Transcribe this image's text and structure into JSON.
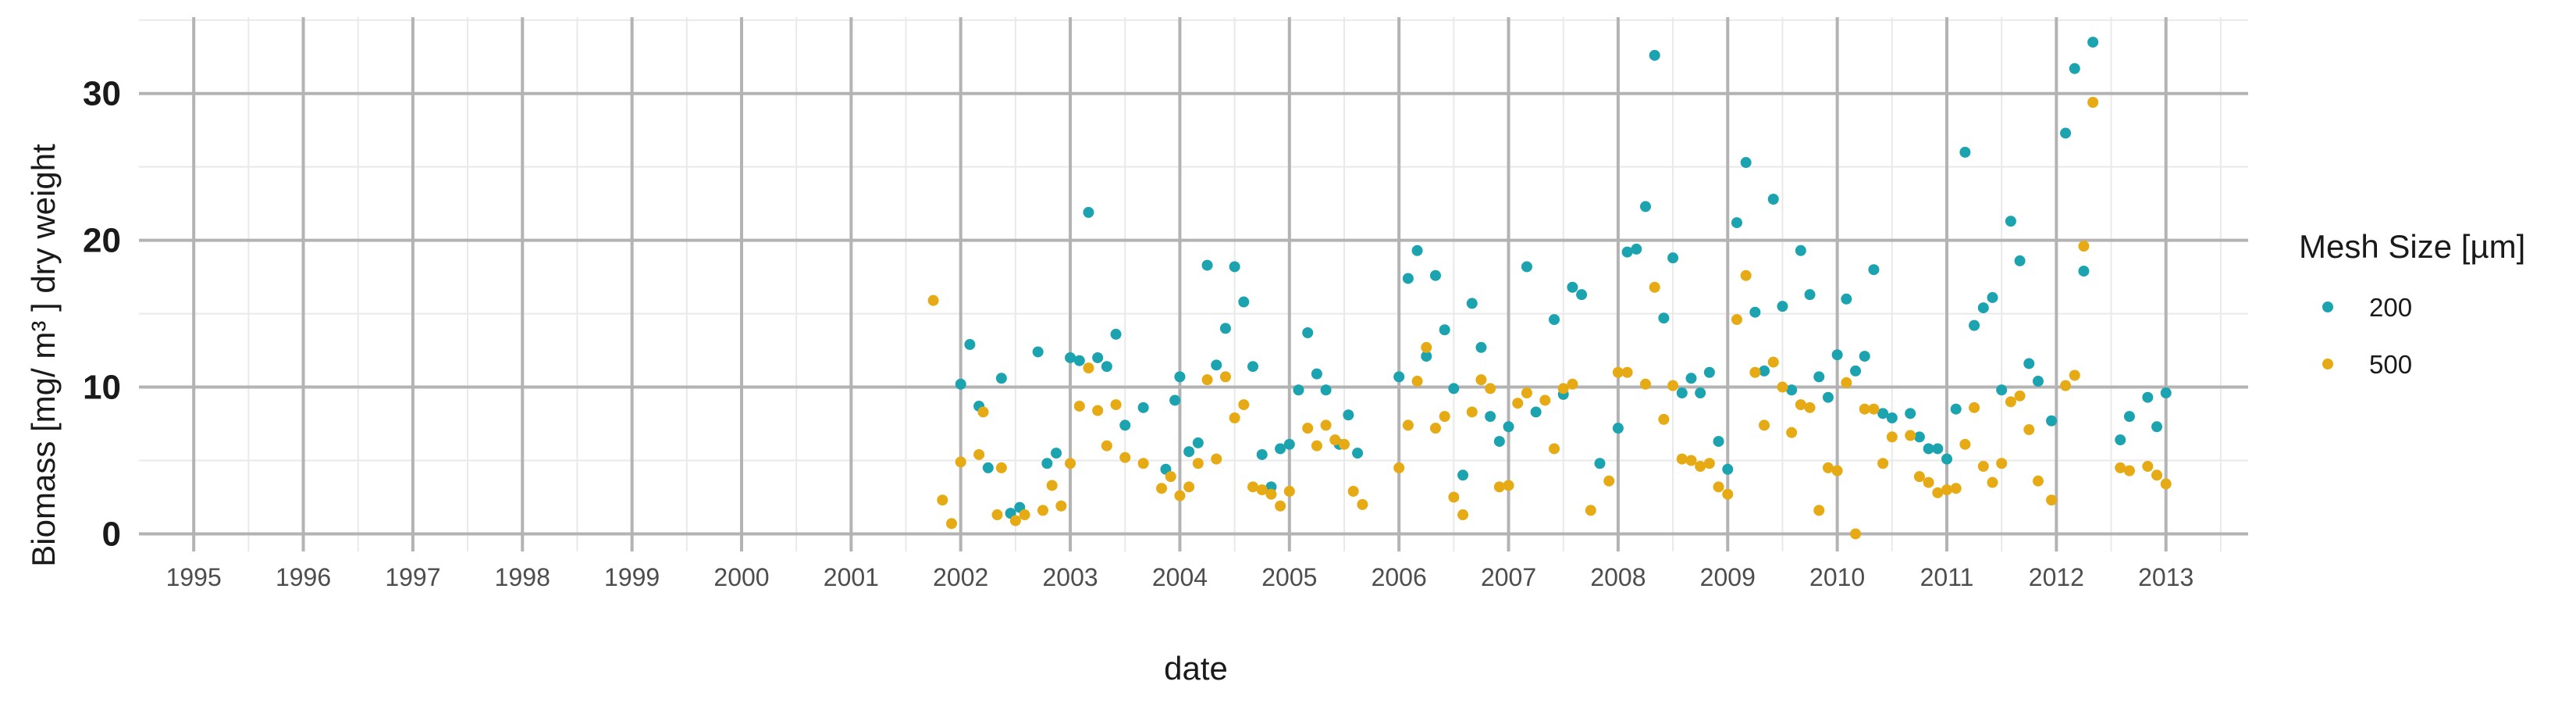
{
  "chart_data": {
    "type": "scatter",
    "xlabel": "date",
    "ylabel": "Biomass [mg/ m³ ] dry weight",
    "ylim": [
      0,
      35
    ],
    "y_ticks": [
      0,
      10,
      20,
      30
    ],
    "x_ticks": [
      "1995",
      "1996",
      "1997",
      "1998",
      "1999",
      "2000",
      "2001",
      "2002",
      "2003",
      "2004",
      "2005",
      "2006",
      "2007",
      "2008",
      "2009",
      "2010",
      "2011",
      "2012",
      "2013"
    ],
    "x_range": [
      "1994-07-01",
      "2013-10-01"
    ],
    "grid": true,
    "legend": {
      "title": "Mesh Size [µm]",
      "position": "right"
    },
    "series": [
      {
        "name": "200",
        "color": "#1ba3b0",
        "points": [
          [
            "2002-01-01",
            10.2
          ],
          [
            "2002-02-01",
            12.9
          ],
          [
            "2002-03-01",
            8.7
          ],
          [
            "2002-04-01",
            4.5
          ],
          [
            "2002-05-15",
            10.6
          ],
          [
            "2002-06-15",
            1.4
          ],
          [
            "2002-07-15",
            1.8
          ],
          [
            "2002-09-15",
            12.4
          ],
          [
            "2002-10-15",
            4.8
          ],
          [
            "2002-11-15",
            5.5
          ],
          [
            "2003-01-01",
            12.0
          ],
          [
            "2003-02-01",
            11.8
          ],
          [
            "2003-03-01",
            21.9
          ],
          [
            "2003-04-01",
            12.0
          ],
          [
            "2003-05-01",
            11.4
          ],
          [
            "2003-06-01",
            13.6
          ],
          [
            "2003-07-01",
            7.4
          ],
          [
            "2003-09-01",
            8.6
          ],
          [
            "2003-11-15",
            4.4
          ],
          [
            "2003-12-15",
            9.1
          ],
          [
            "2004-01-01",
            10.7
          ],
          [
            "2004-02-01",
            5.6
          ],
          [
            "2004-03-01",
            6.2
          ],
          [
            "2004-04-01",
            18.3
          ],
          [
            "2004-05-01",
            11.5
          ],
          [
            "2004-06-01",
            14.0
          ],
          [
            "2004-07-01",
            18.2
          ],
          [
            "2004-08-01",
            15.8
          ],
          [
            "2004-09-01",
            11.4
          ],
          [
            "2004-10-01",
            5.4
          ],
          [
            "2004-11-01",
            3.2
          ],
          [
            "2004-12-01",
            5.8
          ],
          [
            "2005-01-01",
            6.1
          ],
          [
            "2005-02-01",
            9.8
          ],
          [
            "2005-03-01",
            13.7
          ],
          [
            "2005-04-01",
            10.9
          ],
          [
            "2005-05-01",
            9.8
          ],
          [
            "2005-06-15",
            6.1
          ],
          [
            "2005-07-15",
            8.1
          ],
          [
            "2005-08-15",
            5.5
          ],
          [
            "2006-01-01",
            10.7
          ],
          [
            "2006-02-01",
            17.4
          ],
          [
            "2006-03-01",
            19.3
          ],
          [
            "2006-04-01",
            12.1
          ],
          [
            "2006-05-01",
            17.6
          ],
          [
            "2006-06-01",
            13.9
          ],
          [
            "2006-07-01",
            9.9
          ],
          [
            "2006-08-01",
            4.0
          ],
          [
            "2006-09-01",
            15.7
          ],
          [
            "2006-10-01",
            12.7
          ],
          [
            "2006-11-01",
            8.0
          ],
          [
            "2006-12-01",
            6.3
          ],
          [
            "2007-01-01",
            7.3
          ],
          [
            "2007-03-01",
            18.2
          ],
          [
            "2007-04-01",
            8.3
          ],
          [
            "2007-06-01",
            14.6
          ],
          [
            "2007-07-01",
            9.5
          ],
          [
            "2007-08-01",
            16.8
          ],
          [
            "2007-09-01",
            16.3
          ],
          [
            "2007-11-01",
            4.8
          ],
          [
            "2008-01-01",
            7.2
          ],
          [
            "2008-02-01",
            19.2
          ],
          [
            "2008-03-01",
            19.4
          ],
          [
            "2008-04-01",
            22.3
          ],
          [
            "2008-05-01",
            32.6
          ],
          [
            "2008-06-01",
            14.7
          ],
          [
            "2008-07-01",
            18.8
          ],
          [
            "2008-08-01",
            9.6
          ],
          [
            "2008-09-01",
            10.6
          ],
          [
            "2008-10-01",
            9.6
          ],
          [
            "2008-11-01",
            11.0
          ],
          [
            "2008-12-01",
            6.3
          ],
          [
            "2009-01-01",
            4.4
          ],
          [
            "2009-02-01",
            21.2
          ],
          [
            "2009-03-01",
            25.3
          ],
          [
            "2009-04-01",
            15.1
          ],
          [
            "2009-05-01",
            11.1
          ],
          [
            "2009-06-01",
            22.8
          ],
          [
            "2009-07-01",
            15.5
          ],
          [
            "2009-08-01",
            9.8
          ],
          [
            "2009-09-01",
            19.3
          ],
          [
            "2009-10-01",
            16.3
          ],
          [
            "2009-11-01",
            10.7
          ],
          [
            "2009-12-01",
            9.3
          ],
          [
            "2010-01-01",
            12.2
          ],
          [
            "2010-02-01",
            16.0
          ],
          [
            "2010-03-01",
            11.1
          ],
          [
            "2010-04-01",
            12.1
          ],
          [
            "2010-05-01",
            18.0
          ],
          [
            "2010-06-01",
            8.2
          ],
          [
            "2010-07-01",
            7.9
          ],
          [
            "2010-09-01",
            8.2
          ],
          [
            "2010-10-01",
            6.6
          ],
          [
            "2010-11-01",
            5.8
          ],
          [
            "2010-12-01",
            5.8
          ],
          [
            "2011-01-01",
            5.1
          ],
          [
            "2011-02-01",
            8.5
          ],
          [
            "2011-03-01",
            26.0
          ],
          [
            "2011-04-01",
            14.2
          ],
          [
            "2011-05-01",
            15.4
          ],
          [
            "2011-06-01",
            16.1
          ],
          [
            "2011-07-01",
            9.8
          ],
          [
            "2011-08-01",
            21.3
          ],
          [
            "2011-09-01",
            18.6
          ],
          [
            "2011-10-01",
            11.6
          ],
          [
            "2011-11-01",
            10.4
          ],
          [
            "2011-12-15",
            7.7
          ],
          [
            "2012-02-01",
            27.3
          ],
          [
            "2012-03-01",
            31.7
          ],
          [
            "2012-04-01",
            17.9
          ],
          [
            "2012-05-01",
            33.5
          ],
          [
            "2012-08-01",
            6.4
          ],
          [
            "2012-09-01",
            8.0
          ],
          [
            "2012-11-01",
            9.3
          ],
          [
            "2012-12-01",
            7.3
          ],
          [
            "2013-01-01",
            9.6
          ]
        ]
      },
      {
        "name": "500",
        "color": "#e6aa14",
        "points": [
          [
            "2001-10-01",
            15.9
          ],
          [
            "2001-11-01",
            2.3
          ],
          [
            "2001-12-01",
            0.7
          ],
          [
            "2002-01-01",
            4.9
          ],
          [
            "2002-03-01",
            5.4
          ],
          [
            "2002-03-15",
            8.3
          ],
          [
            "2002-05-01",
            1.3
          ],
          [
            "2002-05-15",
            4.5
          ],
          [
            "2002-07-01",
            0.9
          ],
          [
            "2002-08-01",
            1.3
          ],
          [
            "2002-10-01",
            1.6
          ],
          [
            "2002-11-01",
            3.3
          ],
          [
            "2002-12-01",
            1.9
          ],
          [
            "2003-01-01",
            4.8
          ],
          [
            "2003-02-01",
            8.7
          ],
          [
            "2003-03-01",
            11.3
          ],
          [
            "2003-04-01",
            8.4
          ],
          [
            "2003-05-01",
            6.0
          ],
          [
            "2003-06-01",
            8.8
          ],
          [
            "2003-07-01",
            5.2
          ],
          [
            "2003-09-01",
            4.8
          ],
          [
            "2003-11-01",
            3.1
          ],
          [
            "2003-12-01",
            3.9
          ],
          [
            "2004-01-01",
            2.6
          ],
          [
            "2004-02-01",
            3.2
          ],
          [
            "2004-03-01",
            4.8
          ],
          [
            "2004-04-01",
            10.5
          ],
          [
            "2004-05-01",
            5.1
          ],
          [
            "2004-06-01",
            10.7
          ],
          [
            "2004-07-01",
            7.9
          ],
          [
            "2004-08-01",
            8.8
          ],
          [
            "2004-09-01",
            3.2
          ],
          [
            "2004-10-01",
            3.0
          ],
          [
            "2004-11-01",
            2.7
          ],
          [
            "2004-12-01",
            1.9
          ],
          [
            "2005-01-01",
            2.9
          ],
          [
            "2005-03-01",
            7.2
          ],
          [
            "2005-04-01",
            6.0
          ],
          [
            "2005-05-01",
            7.4
          ],
          [
            "2005-06-01",
            6.4
          ],
          [
            "2005-07-01",
            6.1
          ],
          [
            "2005-08-01",
            2.9
          ],
          [
            "2005-09-01",
            2.0
          ],
          [
            "2006-01-01",
            4.5
          ],
          [
            "2006-02-01",
            7.4
          ],
          [
            "2006-03-01",
            10.4
          ],
          [
            "2006-04-01",
            12.7
          ],
          [
            "2006-05-01",
            7.2
          ],
          [
            "2006-06-01",
            8.0
          ],
          [
            "2006-07-01",
            2.5
          ],
          [
            "2006-08-01",
            1.3
          ],
          [
            "2006-09-01",
            8.3
          ],
          [
            "2006-10-01",
            10.5
          ],
          [
            "2006-11-01",
            9.9
          ],
          [
            "2006-12-01",
            3.2
          ],
          [
            "2007-01-01",
            3.3
          ],
          [
            "2007-02-01",
            8.9
          ],
          [
            "2007-03-01",
            9.6
          ],
          [
            "2007-05-01",
            9.1
          ],
          [
            "2007-06-01",
            5.8
          ],
          [
            "2007-07-01",
            9.9
          ],
          [
            "2007-08-01",
            10.2
          ],
          [
            "2007-10-01",
            1.6
          ],
          [
            "2007-12-01",
            3.6
          ],
          [
            "2008-01-01",
            11.0
          ],
          [
            "2008-02-01",
            11.0
          ],
          [
            "2008-04-01",
            10.2
          ],
          [
            "2008-05-01",
            16.8
          ],
          [
            "2008-06-01",
            7.8
          ],
          [
            "2008-07-01",
            10.1
          ],
          [
            "2008-08-01",
            5.1
          ],
          [
            "2008-09-01",
            5.0
          ],
          [
            "2008-10-01",
            4.6
          ],
          [
            "2008-11-01",
            4.8
          ],
          [
            "2008-12-01",
            3.2
          ],
          [
            "2009-01-01",
            2.7
          ],
          [
            "2009-02-01",
            14.6
          ],
          [
            "2009-03-01",
            17.6
          ],
          [
            "2009-04-01",
            11.0
          ],
          [
            "2009-05-01",
            7.4
          ],
          [
            "2009-06-01",
            11.7
          ],
          [
            "2009-07-01",
            10.0
          ],
          [
            "2009-08-01",
            6.9
          ],
          [
            "2009-09-01",
            8.8
          ],
          [
            "2009-10-01",
            8.6
          ],
          [
            "2009-11-01",
            1.6
          ],
          [
            "2009-12-01",
            4.5
          ],
          [
            "2010-01-01",
            4.3
          ],
          [
            "2010-02-01",
            10.3
          ],
          [
            "2010-03-01",
            0.0
          ],
          [
            "2010-04-01",
            8.5
          ],
          [
            "2010-05-01",
            8.5
          ],
          [
            "2010-06-01",
            4.8
          ],
          [
            "2010-07-01",
            6.6
          ],
          [
            "2010-09-01",
            6.7
          ],
          [
            "2010-10-01",
            3.9
          ],
          [
            "2010-11-01",
            3.5
          ],
          [
            "2010-12-01",
            2.8
          ],
          [
            "2011-01-01",
            3.0
          ],
          [
            "2011-02-01",
            3.1
          ],
          [
            "2011-03-01",
            6.1
          ],
          [
            "2011-04-01",
            8.6
          ],
          [
            "2011-05-01",
            4.6
          ],
          [
            "2011-06-01",
            3.5
          ],
          [
            "2011-07-01",
            4.8
          ],
          [
            "2011-08-01",
            9.0
          ],
          [
            "2011-09-01",
            9.4
          ],
          [
            "2011-10-01",
            7.1
          ],
          [
            "2011-11-01",
            3.6
          ],
          [
            "2011-12-15",
            2.3
          ],
          [
            "2012-02-01",
            10.1
          ],
          [
            "2012-03-01",
            10.8
          ],
          [
            "2012-04-01",
            19.6
          ],
          [
            "2012-05-01",
            29.4
          ],
          [
            "2012-08-01",
            4.5
          ],
          [
            "2012-09-01",
            4.3
          ],
          [
            "2012-11-01",
            4.6
          ],
          [
            "2012-12-01",
            4.0
          ],
          [
            "2013-01-01",
            3.4
          ]
        ]
      }
    ]
  }
}
